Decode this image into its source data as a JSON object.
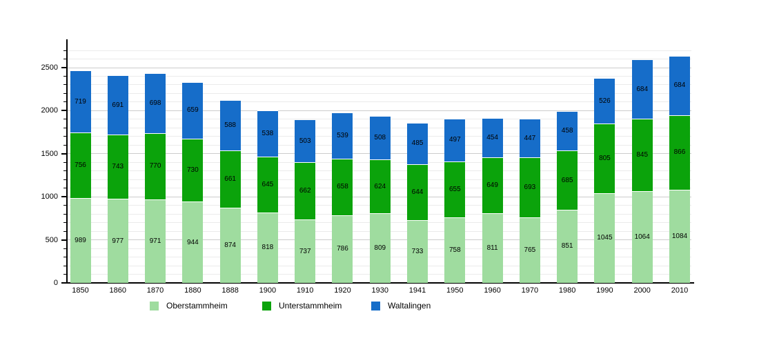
{
  "chart_data": {
    "type": "bar",
    "stacked": true,
    "title": "",
    "xlabel": "",
    "ylabel": "",
    "grid": true,
    "legend_position": "bottom",
    "ylim": [
      0,
      2820
    ],
    "yticks": [
      0,
      500,
      1000,
      1500,
      2000,
      2500
    ],
    "minor_grid_step": 100,
    "categories": [
      "1850",
      "1860",
      "1870",
      "1880",
      "1888",
      "1900",
      "1910",
      "1920",
      "1930",
      "1941",
      "1950",
      "1960",
      "1970",
      "1980",
      "1990",
      "2000",
      "2010"
    ],
    "series": [
      {
        "name": "Oberstammheim",
        "color": "#9fdc9f",
        "values": [
          989,
          977,
          971,
          944,
          874,
          818,
          737,
          786,
          809,
          733,
          758,
          811,
          765,
          851,
          1045,
          1064,
          1084
        ]
      },
      {
        "name": "Unterstammheim",
        "color": "#0ba30b",
        "values": [
          756,
          743,
          770,
          730,
          661,
          645,
          662,
          658,
          624,
          644,
          655,
          649,
          693,
          685,
          805,
          845,
          866
        ]
      },
      {
        "name": "Waltalingen",
        "color": "#166dc9",
        "values": [
          719,
          691,
          698,
          659,
          588,
          538,
          503,
          539,
          508,
          485,
          497,
          454,
          447,
          458,
          526,
          684,
          684
        ]
      }
    ],
    "colors": {
      "major_gridline": "#cccccc",
      "minor_gridline": "#ebebeb",
      "axis": "#000000",
      "label_text": "#000000"
    }
  }
}
